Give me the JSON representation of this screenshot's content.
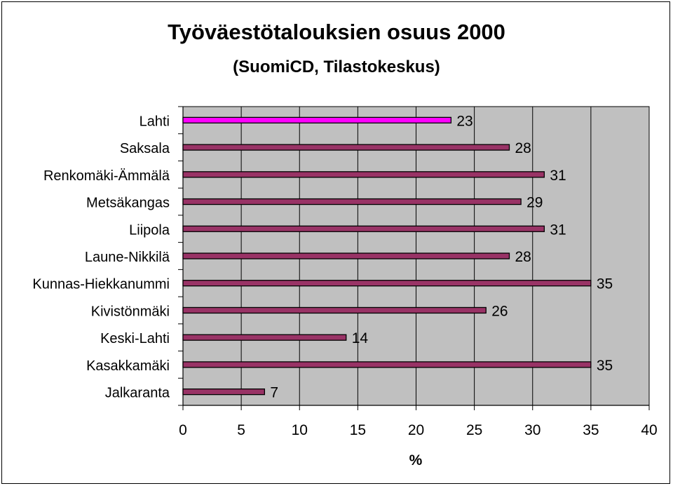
{
  "chart_data": {
    "type": "bar",
    "orientation": "horizontal",
    "title": "Työväestötalouksien osuus 2000",
    "subtitle": "(SuomiCD, Tilastokeskus)",
    "xlabel": "%",
    "ylabel": "",
    "xlim": [
      0,
      40
    ],
    "x_ticks": [
      "0",
      "5",
      "10",
      "15",
      "20",
      "25",
      "30",
      "35",
      "40"
    ],
    "categories": [
      "Lahti",
      "Saksala",
      "Renkomäki-Ämmälä",
      "Metsäkangas",
      "Liipola",
      "Laune-Nikkilä",
      "Kunnas-Hiekkanummi",
      "Kivistönmäki",
      "Keski-Lahti",
      "Kasakkamäki",
      "Jalkaranta"
    ],
    "values": [
      23,
      28,
      31,
      29,
      31,
      28,
      35,
      26,
      14,
      35,
      7
    ],
    "data_labels": [
      "23",
      "28",
      "31",
      "29",
      "31",
      "28",
      "35",
      "26",
      "14",
      "35",
      "7"
    ],
    "highlight_category": "Lahti",
    "colors": {
      "highlight_bar": "#ff00ff",
      "bar": "#993366",
      "plot_background": "#c0c0c0",
      "grid": "#000000"
    },
    "grid": true,
    "legend": "none"
  }
}
